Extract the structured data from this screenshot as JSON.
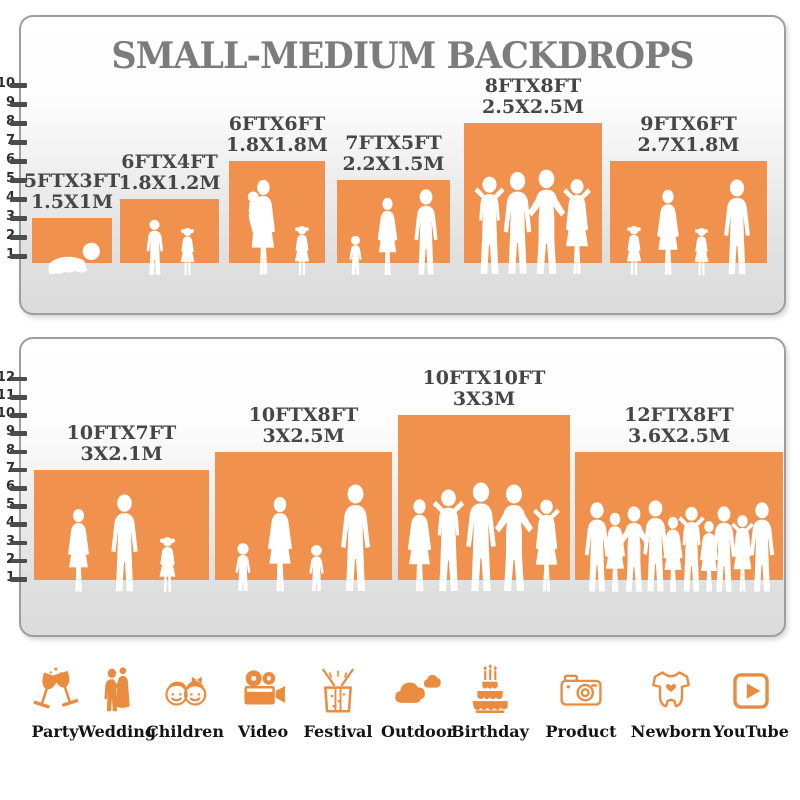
{
  "title": "SMALL-MEDIUM BACKDROPS",
  "colors": {
    "accent": "#F0914E",
    "icon": "#E98C3F",
    "title_gray": "#7C7C7C",
    "label_gray": "#464646"
  },
  "chart_data": [
    {
      "type": "bar",
      "title": "SMALL-MEDIUM BACKDROPS",
      "categories": [
        "5FTX3FT",
        "6FTX4FT",
        "6FTX6FT",
        "7FTX5FT",
        "8FTX8FT",
        "9FTX6FT"
      ],
      "metric_labels": [
        "1.5X1M",
        "1.8X1.2M",
        "1.8X1.8M",
        "2.2X1.5M",
        "2.5X2.5M",
        "2.7X1.8M"
      ],
      "values": [
        3,
        4,
        6,
        5,
        8,
        6
      ],
      "widths_ft": [
        5,
        6,
        6,
        7,
        8,
        9
      ],
      "ylabel": "",
      "xlabel": "",
      "axis": {
        "min": 1,
        "max": 10,
        "ticks": [
          1,
          2,
          3,
          4,
          5,
          6,
          7,
          8,
          9,
          10
        ]
      },
      "legend": "none",
      "grid": false
    },
    {
      "type": "bar",
      "title": "",
      "categories": [
        "10FTX7FT",
        "10FTX8FT",
        "10FTX10FT",
        "12FTX8FT"
      ],
      "metric_labels": [
        "3X2.1M",
        "3X2.5M",
        "3X3M",
        "3.6X2.5M"
      ],
      "values": [
        7,
        8,
        10,
        8
      ],
      "widths_ft": [
        10,
        10,
        10,
        12
      ],
      "ylabel": "",
      "xlabel": "",
      "axis": {
        "min": 1,
        "max": 12,
        "ticks": [
          1,
          2,
          3,
          4,
          5,
          6,
          7,
          8,
          9,
          10,
          11,
          12
        ]
      },
      "legend": "none",
      "grid": false
    }
  ],
  "footer_categories": [
    {
      "label": "Party",
      "icon": "party-icon"
    },
    {
      "label": "Wedding",
      "icon": "wedding-icon"
    },
    {
      "label": "Children",
      "icon": "children-icon"
    },
    {
      "label": "Video",
      "icon": "video-icon"
    },
    {
      "label": "Festival",
      "icon": "festival-icon"
    },
    {
      "label": "Outdoor",
      "icon": "outdoor-icon"
    },
    {
      "label": "Birthday",
      "icon": "birthday-icon"
    },
    {
      "label": "Product",
      "icon": "product-icon"
    },
    {
      "label": "Newborn",
      "icon": "newborn-icon"
    },
    {
      "label": "YouTube",
      "icon": "youtube-icon"
    }
  ]
}
